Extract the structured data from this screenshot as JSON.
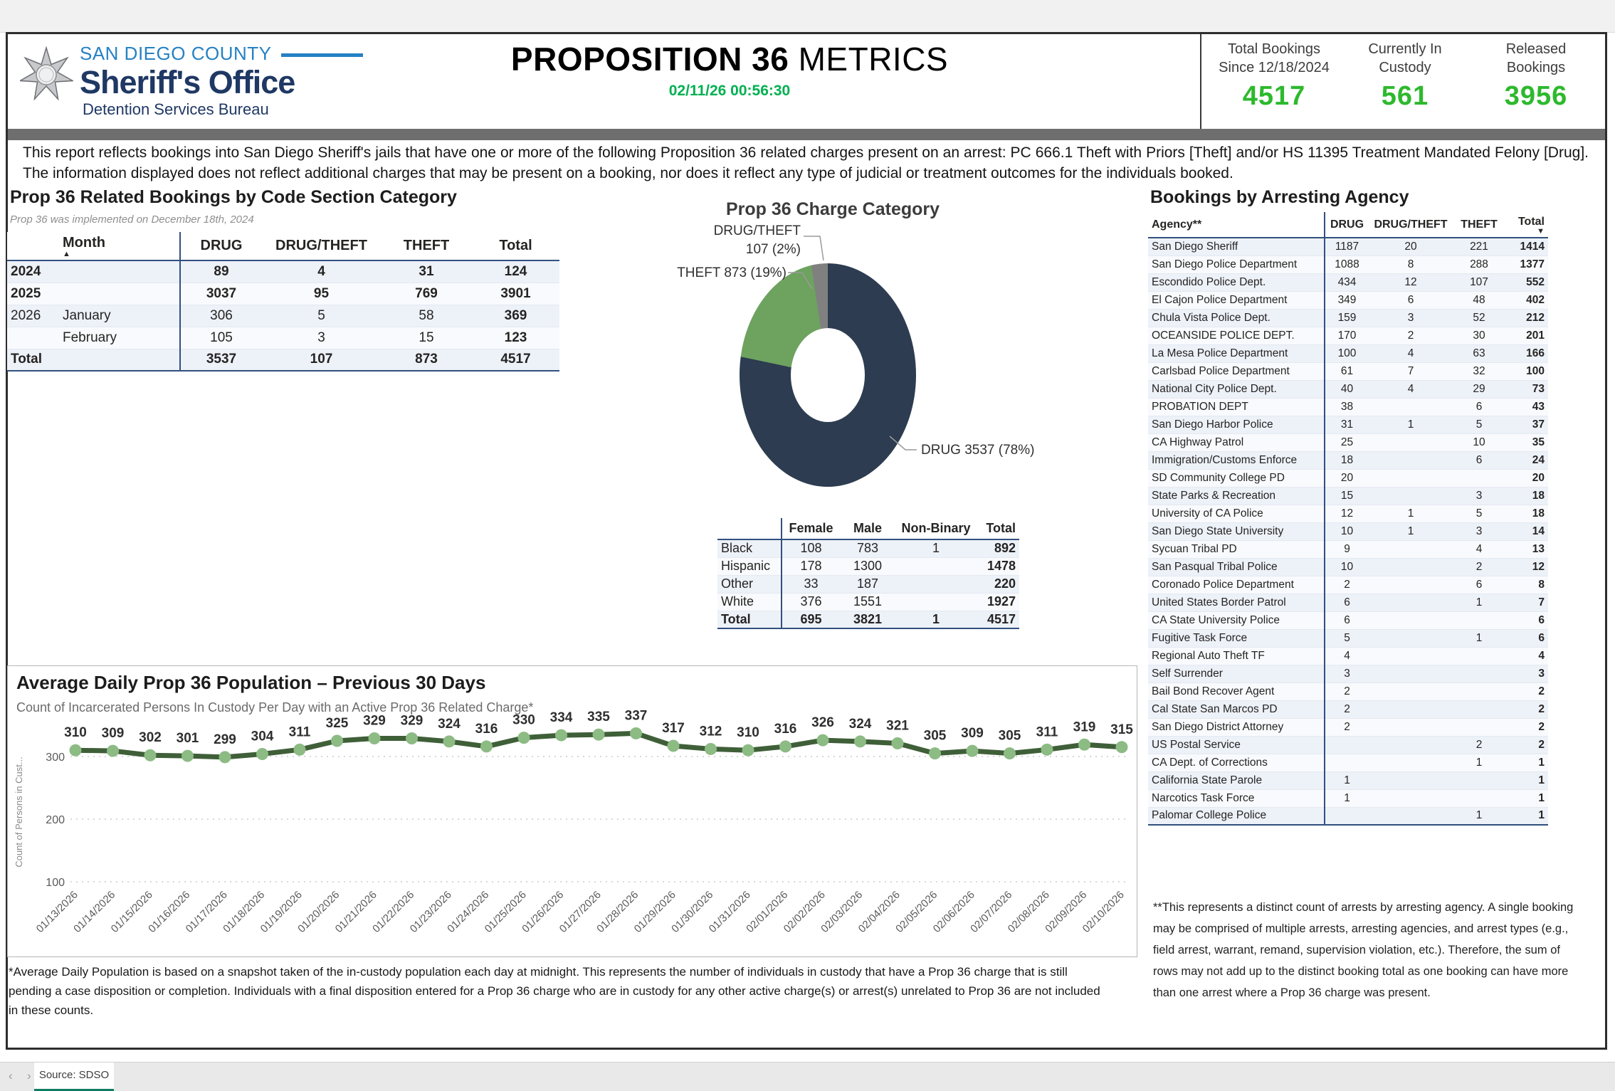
{
  "colors": {
    "stat_green": "#2db92d",
    "date_green": "#00b050",
    "tab_accent": "#0e7c64",
    "table_rule_navy": "#31507e"
  },
  "header": {
    "county": "SAN DIEGO COUNTY",
    "office": "Sheriff's Office",
    "bureau": "Detention Services Bureau",
    "title_strong": "PROPOSITION 36",
    "title_rest": " METRICS",
    "datetime": "02/11/26 00:56:30",
    "stats": [
      {
        "line1": "Total Bookings",
        "line2": "Since 12/18/2024",
        "value": "4517"
      },
      {
        "line1": "Currently In",
        "line2": "Custody",
        "value": "561"
      },
      {
        "line1": "Released",
        "line2": "Bookings",
        "value": "3956"
      }
    ]
  },
  "description": "This report reflects bookings into San Diego Sheriff's jails that have one or more of the following Proposition 36 related charges present on an arrest: PC 666.1 Theft with Priors [Theft] and/or HS 11395 Treatment Mandated Felony [Drug]. The information displayed does not reflect additional charges that may be present on a booking, nor does it reflect any type of judicial or treatment outcomes for the individuals booked.",
  "monthly": {
    "title": "Prop 36 Related Bookings by Code Section Category",
    "subtitle": "Prop 36 was implemented on December 18th, 2024",
    "columns": [
      "",
      "Month",
      "DRUG",
      "DRUG/THEFT",
      "THEFT",
      "Total"
    ],
    "sort_col": 1,
    "sort_dir": "asc",
    "rows": [
      {
        "cells": [
          "2024",
          "",
          "89",
          "4",
          "31",
          "124"
        ],
        "bold": true
      },
      {
        "cells": [
          "2025",
          "",
          "3037",
          "95",
          "769",
          "3901"
        ],
        "bold": true
      },
      {
        "cells": [
          "2026",
          "January",
          "306",
          "5",
          "58",
          "369"
        ],
        "bold": false
      },
      {
        "cells": [
          "",
          "February",
          "105",
          "3",
          "15",
          "123"
        ],
        "bold": false
      },
      {
        "cells": [
          "Total",
          "",
          "3537",
          "107",
          "873",
          "4517"
        ],
        "bold": true
      }
    ]
  },
  "demographics": {
    "columns": [
      "",
      "Female",
      "Male",
      "Non-Binary",
      "Total"
    ],
    "rows": [
      {
        "cells": [
          "Black",
          "108",
          "783",
          "1",
          "892"
        ],
        "bold": false
      },
      {
        "cells": [
          "Hispanic",
          "178",
          "1300",
          "",
          "1478"
        ],
        "bold": false
      },
      {
        "cells": [
          "Other",
          "33",
          "187",
          "",
          "220"
        ],
        "bold": false
      },
      {
        "cells": [
          "White",
          "376",
          "1551",
          "",
          "1927"
        ],
        "bold": false
      },
      {
        "cells": [
          "Total",
          "695",
          "3821",
          "1",
          "4517"
        ],
        "bold": true
      }
    ]
  },
  "agencies": {
    "title": "Bookings by Arresting Agency",
    "columns": [
      "Agency**",
      "DRUG",
      "DRUG/THEFT",
      "THEFT",
      "Total"
    ],
    "sort_col": 4,
    "sort_dir": "desc",
    "rows": [
      {
        "cells": [
          "San Diego Sheriff",
          "1187",
          "20",
          "221",
          "1414"
        ]
      },
      {
        "cells": [
          "San Diego Police Department",
          "1088",
          "8",
          "288",
          "1377"
        ]
      },
      {
        "cells": [
          "Escondido Police Dept.",
          "434",
          "12",
          "107",
          "552"
        ]
      },
      {
        "cells": [
          "El Cajon Police Department",
          "349",
          "6",
          "48",
          "402"
        ]
      },
      {
        "cells": [
          "Chula Vista Police Dept.",
          "159",
          "3",
          "52",
          "212"
        ]
      },
      {
        "cells": [
          "OCEANSIDE POLICE DEPT.",
          "170",
          "2",
          "30",
          "201"
        ]
      },
      {
        "cells": [
          "La Mesa Police Department",
          "100",
          "4",
          "63",
          "166"
        ]
      },
      {
        "cells": [
          "Carlsbad Police Department",
          "61",
          "7",
          "32",
          "100"
        ]
      },
      {
        "cells": [
          "National City Police Dept.",
          "40",
          "4",
          "29",
          "73"
        ]
      },
      {
        "cells": [
          "PROBATION DEPT",
          "38",
          "",
          "6",
          "43"
        ]
      },
      {
        "cells": [
          "San Diego Harbor Police",
          "31",
          "1",
          "5",
          "37"
        ]
      },
      {
        "cells": [
          "CA Highway Patrol",
          "25",
          "",
          "10",
          "35"
        ]
      },
      {
        "cells": [
          "Immigration/Customs Enforce",
          "18",
          "",
          "6",
          "24"
        ]
      },
      {
        "cells": [
          "SD Community College PD",
          "20",
          "",
          "",
          "20"
        ]
      },
      {
        "cells": [
          "State Parks & Recreation",
          "15",
          "",
          "3",
          "18"
        ]
      },
      {
        "cells": [
          "University of CA Police",
          "12",
          "1",
          "5",
          "18"
        ]
      },
      {
        "cells": [
          "San Diego State University",
          "10",
          "1",
          "3",
          "14"
        ]
      },
      {
        "cells": [
          "Sycuan Tribal PD",
          "9",
          "",
          "4",
          "13"
        ]
      },
      {
        "cells": [
          "San Pasqual Tribal Police",
          "10",
          "",
          "2",
          "12"
        ]
      },
      {
        "cells": [
          "Coronado Police Department",
          "2",
          "",
          "6",
          "8"
        ]
      },
      {
        "cells": [
          "United States Border Patrol",
          "6",
          "",
          "1",
          "7"
        ]
      },
      {
        "cells": [
          "CA State University Police",
          "6",
          "",
          "",
          "6"
        ]
      },
      {
        "cells": [
          "Fugitive Task Force",
          "5",
          "",
          "1",
          "6"
        ]
      },
      {
        "cells": [
          "Regional Auto Theft TF",
          "4",
          "",
          "",
          "4"
        ]
      },
      {
        "cells": [
          "Self Surrender",
          "3",
          "",
          "",
          "3"
        ]
      },
      {
        "cells": [
          "Bail Bond Recover Agent",
          "2",
          "",
          "",
          "2"
        ]
      },
      {
        "cells": [
          "Cal State San Marcos PD",
          "2",
          "",
          "",
          "2"
        ]
      },
      {
        "cells": [
          "San Diego District Attorney",
          "2",
          "",
          "",
          "2"
        ]
      },
      {
        "cells": [
          "US Postal Service",
          "",
          "",
          "2",
          "2"
        ]
      },
      {
        "cells": [
          "CA Dept. of Corrections",
          "",
          "",
          "1",
          "1"
        ]
      },
      {
        "cells": [
          "California State Parole",
          "1",
          "",
          "",
          "1"
        ]
      },
      {
        "cells": [
          "Narcotics Task Force",
          "1",
          "",
          "",
          "1"
        ]
      },
      {
        "cells": [
          "Palomar College Police",
          "",
          "",
          "1",
          "1"
        ]
      }
    ]
  },
  "chart_data": [
    {
      "type": "pie",
      "donut": true,
      "title": "Prop 36 Charge Category",
      "labels": [
        "DRUG",
        "THEFT",
        "DRUG/THEFT"
      ],
      "values": [
        3537,
        873,
        107
      ],
      "percents": [
        78,
        19,
        2
      ],
      "colors": [
        "#2d3c50",
        "#6da25f",
        "#808080"
      ]
    },
    {
      "type": "line",
      "title": "Average Daily Prop 36 Population – Previous 30 Days",
      "subtitle": "Count of Incarcerated Persons In Custody Per Day with an Active Prop 36 Related Charge*",
      "ylabel": "Count of Persons in Cust...",
      "yticks": [
        100,
        200,
        300
      ],
      "ylim": [
        60,
        360
      ],
      "grid": true,
      "line_color": "#3f5f38",
      "marker_color": "#8cbb84",
      "x": [
        "01/13/2026",
        "01/14/2026",
        "01/15/2026",
        "01/16/2026",
        "01/17/2026",
        "01/18/2026",
        "01/19/2026",
        "01/20/2026",
        "01/21/2026",
        "01/22/2026",
        "01/23/2026",
        "01/24/2026",
        "01/25/2026",
        "01/26/2026",
        "01/27/2026",
        "01/28/2026",
        "01/29/2026",
        "01/30/2026",
        "01/31/2026",
        "02/01/2026",
        "02/02/2026",
        "02/03/2026",
        "02/04/2026",
        "02/05/2026",
        "02/06/2026",
        "02/07/2026",
        "02/08/2026",
        "02/09/2026",
        "02/10/2026"
      ],
      "values": [
        310,
        309,
        302,
        301,
        299,
        304,
        311,
        325,
        329,
        329,
        324,
        316,
        330,
        334,
        335,
        337,
        317,
        312,
        310,
        316,
        326,
        324,
        321,
        305,
        309,
        305,
        311,
        319,
        315
      ]
    }
  ],
  "footnotes": {
    "left": "*Average Daily Population is based on a snapshot taken of the in-custody population each day at midnight. This represents the number of individuals in custody that have a Prop 36 charge that is still pending a case disposition or completion. Individuals with a final disposition entered for a Prop 36 charge who are in custody for any other active charge(s) or arrest(s) unrelated to Prop 36 are not included in these counts.",
    "right": "**This represents a distinct count of arrests by arresting agency. A single booking may be comprised of multiple arrests, arresting agencies, and arrest types (e.g., field arrest, warrant, remand, supervision violation, etc.). Therefore, the sum of rows may not add up to the distinct booking total as one booking can have more than one arrest where a Prop 36 charge was present."
  },
  "window": {
    "tab_label": "Source: SDSO",
    "prev_arrow": "‹",
    "next_arrow": "›"
  }
}
